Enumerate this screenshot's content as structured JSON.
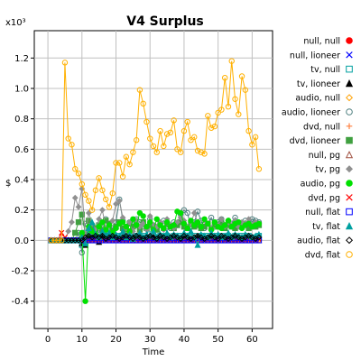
{
  "chart_data": {
    "type": "line",
    "title": "V4 Surplus",
    "xlabel": "Time",
    "ylabel": "$",
    "y_multiplier": "x10³",
    "xlim": [
      -4,
      66
    ],
    "ylim": [
      -0.58,
      1.38
    ],
    "x_ticks": [
      "0",
      "10",
      "20",
      "30",
      "40",
      "50",
      "60"
    ],
    "x_tick_values": [
      0,
      10,
      20,
      30,
      40,
      50,
      60
    ],
    "y_ticks": [
      "-0.4",
      "-0.2",
      "0.0",
      "0.2",
      "0.4",
      "0.6",
      "0.8",
      "1.0",
      "1.2"
    ],
    "y_tick_values": [
      -0.4,
      -0.2,
      0.0,
      0.2,
      0.4,
      0.6,
      0.8,
      1.0,
      1.2
    ],
    "grid": true,
    "legend_position": "right",
    "x": [
      1,
      2,
      3,
      4,
      5,
      6,
      7,
      8,
      9,
      10,
      11,
      12,
      13,
      14,
      15,
      16,
      17,
      18,
      19,
      20,
      21,
      22,
      23,
      24,
      25,
      26,
      27,
      28,
      29,
      30,
      31,
      32,
      33,
      34,
      35,
      36,
      37,
      38,
      39,
      40,
      41,
      42,
      43,
      44,
      45,
      46,
      47,
      48,
      49,
      50,
      51,
      52,
      53,
      54,
      55,
      56,
      57,
      58,
      59,
      60,
      61,
      62
    ],
    "series": [
      {
        "name": "null, null",
        "color": "#ff0000",
        "marker": "circle-filled",
        "values": [
          0,
          0,
          0,
          0,
          0,
          0,
          0,
          0,
          0,
          0.01,
          0.01,
          0,
          0,
          0,
          0,
          0,
          0.01,
          0,
          0,
          0,
          0,
          0,
          0,
          0,
          0,
          0,
          0,
          0,
          0,
          0,
          0,
          0,
          0,
          0,
          0,
          0,
          0,
          0,
          0,
          0,
          0,
          0,
          0,
          0,
          0,
          0,
          0,
          0,
          0,
          0,
          0,
          0,
          0,
          0,
          0,
          0,
          0,
          0,
          0,
          0,
          0,
          0.02
        ]
      },
      {
        "name": "null, lioneer",
        "color": "#0000ff",
        "marker": "x",
        "values": [
          0,
          0,
          0,
          0,
          0,
          0,
          0,
          0,
          0,
          0,
          0,
          0.01,
          0,
          0,
          0,
          0,
          0,
          0,
          0,
          0,
          0,
          0,
          0,
          0,
          0,
          0,
          0,
          0,
          0,
          0,
          0,
          0,
          0,
          0,
          0,
          0,
          0,
          0,
          0,
          0,
          0,
          0,
          0,
          0,
          0,
          0,
          0,
          0,
          0,
          0,
          0,
          0,
          0,
          0,
          0,
          0,
          0,
          0,
          0,
          0,
          0,
          0.01
        ]
      },
      {
        "name": "tv, null",
        "color": "#00a0a0",
        "marker": "square",
        "values": [
          0,
          0,
          0,
          0,
          0,
          0,
          0,
          0,
          0,
          -0.03,
          0.05,
          0.06,
          0.03,
          0.02,
          0.04,
          0.02,
          0.05,
          0.04,
          0.03,
          0.02,
          0.03,
          0.02,
          0.04,
          0.03,
          0.02,
          0.03,
          0.02,
          0.03,
          0.02,
          0.04,
          0.03,
          0.02,
          0.03,
          0.02,
          0.03,
          0.02,
          0.03,
          0.02,
          0.03,
          0.02,
          0.03,
          0.02,
          0.03,
          0.02,
          0.03,
          0.02,
          0.03,
          0.02,
          0.03,
          0.02,
          0.03,
          0.02,
          0.03,
          0.02,
          0.03,
          0.02,
          0.03,
          0.02,
          0.03,
          0.02,
          0.02,
          0.03
        ]
      },
      {
        "name": "tv, lioneer",
        "color": "#000000",
        "marker": "triangle-filled",
        "values": [
          0,
          0,
          0,
          0,
          0,
          0,
          0,
          0,
          0,
          -0.02,
          -0.03,
          0.02,
          0.01,
          0,
          -0.01,
          0.02,
          0.03,
          0.01,
          0.02,
          0.01,
          0,
          0.01,
          0.02,
          0.01,
          0.02,
          0,
          0.01,
          0.02,
          0.01,
          0,
          0.02,
          0.01,
          0.02,
          0,
          0.01,
          0.02,
          0.01,
          0,
          0.02,
          0.01,
          0.02,
          0,
          0.01,
          0.02,
          0.01,
          0,
          0.02,
          0.01,
          0.02,
          0,
          0.01,
          0.02,
          0.01,
          0,
          0.02,
          0.01,
          0.02,
          0,
          0.01,
          0.02,
          0.01,
          0.02
        ]
      },
      {
        "name": "audio, null",
        "color": "#ffa000",
        "marker": "diamond",
        "values": [
          0,
          0,
          0,
          0,
          0,
          0,
          0,
          0,
          0,
          0,
          0,
          0,
          0,
          0,
          0,
          0,
          0,
          0,
          0,
          0,
          0,
          0,
          0,
          0,
          0,
          0,
          0,
          0,
          0,
          0,
          0,
          0,
          0,
          0,
          0,
          0,
          0,
          0,
          0,
          0,
          0,
          0,
          0,
          0,
          0,
          0,
          0,
          0,
          0,
          0,
          0,
          0,
          0,
          0,
          0,
          0,
          0,
          0,
          0,
          0,
          0,
          0
        ]
      },
      {
        "name": "audio, lioneer",
        "color": "#508080",
        "marker": "circle",
        "values": [
          0,
          0,
          0,
          0,
          0,
          0,
          0,
          0,
          0.05,
          -0.08,
          0.11,
          0.12,
          0.06,
          0.08,
          0.05,
          0.1,
          0.14,
          0.09,
          0.08,
          0.12,
          0.27,
          0.13,
          0.09,
          0.12,
          0.1,
          0.14,
          0.12,
          0.09,
          0.08,
          0.14,
          0.1,
          0.07,
          0.11,
          0.13,
          0.09,
          0.08,
          0.12,
          0.1,
          0.17,
          0.2,
          0.18,
          0.09,
          0.12,
          0.19,
          0.13,
          0.08,
          0.11,
          0.15,
          0.09,
          0.12,
          0.14,
          0.1,
          0.13,
          0.11,
          0.15,
          0.12,
          0.1,
          0.13,
          0.11,
          0.14,
          0.13,
          0.12
        ]
      },
      {
        "name": "dvd, null",
        "color": "#ff8040",
        "marker": "plus",
        "values": [
          0,
          0,
          0,
          0,
          0,
          0,
          0,
          0,
          0,
          0,
          0,
          0,
          0,
          0,
          0,
          0,
          0,
          0,
          0,
          0,
          0,
          0,
          0,
          0,
          0,
          0,
          0,
          0,
          0,
          0,
          0,
          0,
          0,
          0,
          0,
          0,
          0,
          0,
          0,
          0,
          0,
          0,
          0,
          0,
          0,
          0,
          0,
          0,
          0,
          0,
          0,
          0,
          0,
          0,
          0,
          0,
          0,
          0,
          0,
          0,
          0,
          0
        ]
      },
      {
        "name": "dvd, lioneer",
        "color": "#40a040",
        "marker": "square-filled",
        "values": [
          0,
          0,
          0,
          0,
          0,
          0,
          0,
          0.05,
          0.12,
          0.17,
          0.04,
          0.13,
          0.09,
          0.08,
          0.1,
          0.07,
          0.13,
          0.11,
          0.06,
          0.09,
          0.12,
          0.08,
          0.07,
          0.11,
          0.09,
          0.1,
          0.07,
          0.12,
          0.08,
          0.1,
          0.09,
          0.07,
          0.1,
          0.08,
          0.11,
          0.09,
          0.08,
          0.1,
          0.12,
          0.09,
          0.08,
          0.11,
          0.09,
          0.1,
          0.08,
          0.09,
          0.11,
          0.08,
          0.1,
          0.09,
          0.11,
          0.08,
          0.1,
          0.09,
          0.08,
          0.1,
          0.09,
          0.11,
          0.08,
          0.1,
          0.09,
          0.1
        ]
      },
      {
        "name": "null, pg",
        "color": "#a05040",
        "marker": "triangle",
        "values": [
          0,
          0,
          0,
          0,
          0,
          0,
          0,
          0,
          0,
          0,
          0,
          0,
          0,
          0,
          0,
          0,
          0,
          0,
          0,
          0,
          0,
          0,
          0,
          0,
          0,
          0,
          0,
          0,
          0,
          0,
          0,
          0,
          0,
          0,
          0,
          0,
          0,
          0,
          0,
          0,
          0,
          0,
          0,
          0,
          0,
          0,
          0,
          0,
          0,
          0,
          0,
          0,
          0,
          0,
          0,
          0,
          0,
          0,
          0,
          0,
          0,
          0
        ]
      },
      {
        "name": "tv, pg",
        "color": "#909090",
        "marker": "diamond-filled",
        "values": [
          0,
          0,
          0,
          0,
          0,
          0.06,
          0.12,
          0.28,
          0.22,
          0.34,
          0.02,
          0.18,
          0.11,
          0.07,
          0.14,
          0.2,
          0.08,
          0.1,
          0.13,
          0.24,
          0.26,
          0.15,
          0.08,
          0.12,
          0.06,
          0.13,
          0.09,
          0.11,
          0.07,
          0.16,
          0.1,
          0.09,
          0.12,
          0.07,
          0.14,
          0.1,
          0.08,
          0.12,
          0.15,
          0.13,
          0.09,
          0.11,
          0.18,
          0.12,
          0.09,
          0.13,
          0.11,
          0.08,
          0.12,
          0.1,
          0.14,
          0.09,
          0.12,
          0.1,
          0.13,
          0.09,
          0.12,
          0.11,
          0.14,
          0.1,
          0.12,
          0.11
        ]
      },
      {
        "name": "audio, pg",
        "color": "#00e000",
        "marker": "circle-filled",
        "values": [
          0,
          0,
          0,
          0,
          0,
          0,
          0,
          0,
          0,
          0.05,
          -0.4,
          0.09,
          0.06,
          0.04,
          0.09,
          0.12,
          0.07,
          0.1,
          0.05,
          0.08,
          0.11,
          0.12,
          0.09,
          0.06,
          0.14,
          0.1,
          0.18,
          0.16,
          0.09,
          0.12,
          0.07,
          0.14,
          0.1,
          0.08,
          0.12,
          0.09,
          0.1,
          0.19,
          0.18,
          0.11,
          0.08,
          0.13,
          0.1,
          0.12,
          0.09,
          0.14,
          0.11,
          0.07,
          0.12,
          0.09,
          0.08,
          0.1,
          0.13,
          0.09,
          0.11,
          0.12,
          0.08,
          0.1,
          0.11,
          0.09,
          0.1,
          0.11
        ]
      },
      {
        "name": "dvd, pg",
        "color": "#ff0000",
        "marker": "x",
        "values": [
          0,
          0,
          0,
          0.05,
          0.02,
          0,
          0,
          0,
          0,
          0,
          0,
          0,
          0,
          0,
          0,
          0,
          0,
          0,
          0,
          0,
          0,
          0,
          0,
          0,
          0,
          0,
          0,
          0,
          0,
          0,
          0,
          0,
          0,
          0,
          0,
          0,
          0,
          0,
          0,
          0,
          0,
          0,
          0,
          0,
          0,
          0,
          0,
          0,
          0,
          0,
          0,
          0,
          0,
          0,
          0,
          0,
          0,
          0,
          0,
          0,
          0,
          0.01
        ]
      },
      {
        "name": "null, flat",
        "color": "#0000ff",
        "marker": "square",
        "values": [
          0,
          0,
          0,
          0,
          0,
          0,
          0,
          0,
          0,
          0,
          0,
          0,
          0,
          0,
          0,
          0,
          0,
          0,
          0,
          0,
          0,
          0,
          0,
          0,
          0,
          0,
          0,
          0,
          0,
          0,
          0,
          0,
          0,
          0,
          0,
          0,
          0,
          0,
          0,
          0,
          0,
          0,
          0,
          0,
          0,
          0,
          0,
          0,
          0,
          0,
          0,
          0,
          0,
          0,
          0,
          0,
          0,
          0,
          0,
          0,
          0,
          0
        ]
      },
      {
        "name": "tv, flat",
        "color": "#00a0a0",
        "marker": "triangle-filled",
        "values": [
          0,
          0,
          0,
          0,
          0,
          0,
          0,
          0,
          0,
          0.02,
          -0.02,
          0.08,
          0.12,
          0.04,
          0.02,
          0.06,
          0.03,
          0.05,
          0.02,
          0.04,
          0.03,
          0.06,
          0.02,
          0.04,
          0.01,
          0.03,
          0.05,
          0.02,
          0.04,
          0.03,
          0.06,
          0.02,
          0.04,
          0.03,
          0.05,
          0.02,
          0.04,
          0.03,
          0.02,
          0.05,
          0.03,
          0.06,
          0.02,
          -0.03,
          0.04,
          0.03,
          0.02,
          0.05,
          0.03,
          0.04,
          0.02,
          0.03,
          0.05,
          0.02,
          0.04,
          0.03,
          0.02,
          0.04,
          0.03,
          0.02,
          0.03,
          0.04
        ]
      },
      {
        "name": "audio, flat",
        "color": "#000000",
        "marker": "diamond",
        "values": [
          0,
          0,
          0,
          0,
          0,
          0,
          0,
          0,
          0,
          0,
          0.02,
          0.03,
          0.02,
          0.03,
          0.02,
          0.03,
          0.01,
          0.02,
          0.03,
          0.02,
          0.01,
          0.02,
          0.03,
          0.02,
          0.01,
          0.03,
          0.02,
          0.01,
          0.02,
          0.03,
          0.02,
          0.01,
          0.03,
          0.02,
          0.01,
          0.02,
          0.03,
          0.02,
          0.01,
          0.03,
          0.02,
          0.01,
          0.02,
          0.03,
          0.02,
          0.01,
          0.02,
          0.03,
          0.02,
          0.01,
          0.03,
          0.02,
          0.01,
          0.02,
          0.03,
          0.02,
          0.01,
          0.02,
          0.03,
          0.02,
          0.01,
          0.02
        ]
      },
      {
        "name": "dvd, flat",
        "color": "#ffb000",
        "marker": "circle",
        "values": [
          0,
          0,
          0,
          0,
          1.17,
          0.67,
          0.63,
          0.47,
          0.44,
          0.37,
          0.3,
          0.26,
          0.2,
          0.33,
          0.41,
          0.33,
          0.27,
          0.22,
          0.31,
          0.51,
          0.51,
          0.42,
          0.55,
          0.5,
          0.58,
          0.66,
          0.99,
          0.9,
          0.78,
          0.67,
          0.62,
          0.58,
          0.72,
          0.62,
          0.7,
          0.71,
          0.79,
          0.6,
          0.58,
          0.72,
          0.78,
          0.66,
          0.68,
          0.59,
          0.58,
          0.57,
          0.82,
          0.74,
          0.75,
          0.84,
          0.86,
          1.07,
          0.88,
          1.18,
          0.93,
          0.83,
          1.08,
          0.99,
          0.72,
          0.63,
          0.68,
          0.47
        ]
      }
    ]
  }
}
